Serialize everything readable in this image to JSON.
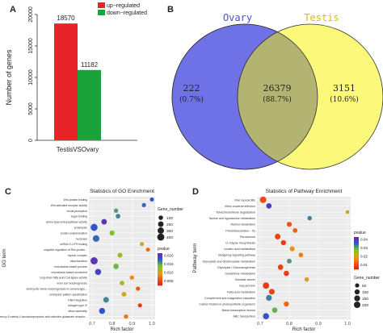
{
  "panels": {
    "a": {
      "letter": "A",
      "chart_data": {
        "type": "bar",
        "categories": [
          "TestisVSOvary"
        ],
        "series": [
          {
            "name": "up−regulated",
            "values": [
              18570
            ],
            "color": "#e8232a"
          },
          {
            "name": "down−regulated",
            "values": [
              11182
            ],
            "color": "#1aa33a"
          }
        ],
        "ylabel": "Number of genes",
        "xlabel": "TestisVSOvary",
        "ylim": [
          0,
          20000
        ],
        "yticks": [
          0,
          5000,
          10000,
          15000,
          20000
        ],
        "data_labels": [
          "18570",
          "11182"
        ],
        "legend": "top-right"
      }
    },
    "b": {
      "letter": "B",
      "venn": {
        "left_set": {
          "name": "Ovary",
          "color": "#6f72e6"
        },
        "right_set": {
          "name": "Testis",
          "color": "#fbf87a"
        },
        "overlap_color": "#b3b471",
        "left_only": {
          "count": "222",
          "pct": "(0.7%)"
        },
        "both": {
          "count": "26379",
          "pct": "(88.7%)"
        },
        "right_only": {
          "count": "3151",
          "pct": "(10.6%)"
        }
      }
    },
    "c": {
      "letter": "C",
      "chart_data": {
        "type": "scatter",
        "title": "Statistics of GO Enrichment",
        "ylabel": "GO term",
        "xlabel": "Rich factor",
        "xlim": [
          0.7,
          1.0
        ],
        "xticks": [
          "0.7",
          "0.8",
          "0.9",
          "1.0"
        ],
        "legend_size_title": "Gene_number",
        "legend_size_values": [
          "100",
          "200",
          "300",
          "400"
        ],
        "legend_color_title": "pvalue",
        "legend_color_values": [
          "0.005",
          "0.010",
          "0.015",
          "0.020"
        ],
        "terms": [
          "Wnt-protein binding",
          "Wnt-activated receptor activity",
          "visual perception",
          "sugar binding",
          "serine-type endopeptidase activity",
          "proteolysis",
          "protein polymerization",
          "nucleolus",
          "ncRNA 3′-UTR binding",
          "negative regulation of Rho protein...",
          "myosin complex",
          "mitochondrion",
          "microtubule-based process",
          "microtubule-based movement",
          "long-chain fatty acid-CoA ligase activity",
          "inner ear morphogenesis",
          "embryonic retina morphogenesis in camera-type...",
          "embryonic pattern specification",
          "DNA integration",
          "collagen type IV",
          "cilium assembly",
          "alpha-amino-3-hydroxy-5-methyl-4-isoxazolepropionic acid selective glutamate receptor..."
        ],
        "points": [
          {
            "x": 1.0,
            "size": 70,
            "p": 0.019
          },
          {
            "x": 0.96,
            "size": 80,
            "p": 0.018
          },
          {
            "x": 0.82,
            "size": 90,
            "p": 0.016
          },
          {
            "x": 0.83,
            "size": 110,
            "p": 0.017
          },
          {
            "x": 0.76,
            "size": 200,
            "p": 0.021
          },
          {
            "x": 0.71,
            "size": 380,
            "p": 0.019
          },
          {
            "x": 0.8,
            "size": 150,
            "p": 0.014
          },
          {
            "x": 0.72,
            "size": 320,
            "p": 0.018
          },
          {
            "x": 0.95,
            "size": 70,
            "p": 0.011
          },
          {
            "x": 0.98,
            "size": 70,
            "p": 0.007
          },
          {
            "x": 0.84,
            "size": 130,
            "p": 0.013
          },
          {
            "x": 0.71,
            "size": 400,
            "p": 0.021
          },
          {
            "x": 0.82,
            "size": 180,
            "p": 0.015
          },
          {
            "x": 0.73,
            "size": 260,
            "p": 0.02
          },
          {
            "x": 0.9,
            "size": 90,
            "p": 0.009
          },
          {
            "x": 0.85,
            "size": 100,
            "p": 0.012
          },
          {
            "x": 0.93,
            "size": 80,
            "p": 0.006
          },
          {
            "x": 0.86,
            "size": 110,
            "p": 0.011
          },
          {
            "x": 0.77,
            "size": 210,
            "p": 0.017
          },
          {
            "x": 0.94,
            "size": 70,
            "p": 0.004
          },
          {
            "x": 0.75,
            "size": 250,
            "p": 0.019
          },
          {
            "x": 0.87,
            "size": 90,
            "p": 0.008
          }
        ]
      }
    },
    "d": {
      "letter": "D",
      "chart_data": {
        "type": "scatter",
        "title": "Statistics of Pathway Enrichment",
        "ylabel": "Pathway term",
        "xlabel": "Rich factor",
        "xlim": [
          0.7,
          1.0
        ],
        "xticks": [
          "0.7",
          "0.8",
          "0.9",
          "1.0"
        ],
        "legend_color_title": "pvalue",
        "legend_color_values": [
          "0.01",
          "0.02",
          "0.03",
          "0.04"
        ],
        "legend_size_title": "Gene_number",
        "legend_size_values": [
          "50",
          "100",
          "150",
          "200"
        ],
        "terms": [
          "Viral myocarditis",
          "Vibrio cholerae infection",
          "Tetrachloroethene degradation",
          "Taurine and hypotaurine metabolism",
          "Retinol metabolism",
          "Phototransduction − fly",
          "Peroxisome",
          "O−Glycan biosynthesis",
          "Linoleic acid metabolism",
          "Hedgehog signaling pathway",
          "Glyoxylate and dicarboxylate metabolism",
          "Glycolysis / Gluconeogenesis",
          "Glutathione metabolism",
          "Gonadal cancer",
          "Gap junction",
          "Fatty acid metabolism",
          "Complement and coagulation cascades",
          "Carbon fixation in photosynthetic organisms",
          "Basal transcription factors",
          "ABC transporters"
        ],
        "points": [
          {
            "x": 0.71,
            "size": 200,
            "p": 0.013
          },
          {
            "x": 0.73,
            "size": 120,
            "p": 0.045
          },
          {
            "x": 1.0,
            "size": 30,
            "p": 0.026
          },
          {
            "x": 0.87,
            "size": 60,
            "p": 0.038
          },
          {
            "x": 0.8,
            "size": 90,
            "p": 0.014
          },
          {
            "x": 0.82,
            "size": 80,
            "p": 0.016
          },
          {
            "x": 0.76,
            "size": 140,
            "p": 0.012
          },
          {
            "x": 0.78,
            "size": 100,
            "p": 0.011
          },
          {
            "x": 0.81,
            "size": 90,
            "p": 0.021
          },
          {
            "x": 0.84,
            "size": 70,
            "p": 0.019
          },
          {
            "x": 0.8,
            "size": 80,
            "p": 0.036
          },
          {
            "x": 0.77,
            "size": 120,
            "p": 0.012
          },
          {
            "x": 0.79,
            "size": 110,
            "p": 0.011
          },
          {
            "x": 0.86,
            "size": 60,
            "p": 0.024
          },
          {
            "x": 0.72,
            "size": 190,
            "p": 0.011
          },
          {
            "x": 0.74,
            "size": 140,
            "p": 0.012
          },
          {
            "x": 0.73,
            "size": 150,
            "p": 0.038
          },
          {
            "x": 0.79,
            "size": 100,
            "p": 0.016
          },
          {
            "x": 0.75,
            "size": 120,
            "p": 0.034
          },
          {
            "x": 0.72,
            "size": 170,
            "p": 0.042
          }
        ]
      }
    }
  }
}
